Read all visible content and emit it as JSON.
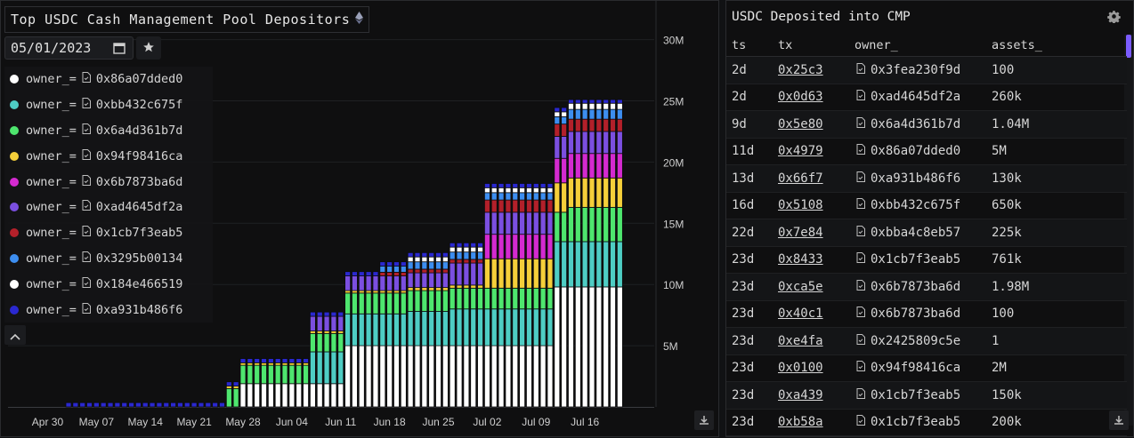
{
  "left": {
    "title": "Top USDC Cash Management Pool Depositors",
    "date": "05/01/2023",
    "legend_key": "owner_=",
    "legend": [
      {
        "label": "0x86a07dded0",
        "color": "#ffffff"
      },
      {
        "label": "0xbb432c675f",
        "color": "#4ecdc4"
      },
      {
        "label": "0x6a4d361b7d",
        "color": "#4ee66e"
      },
      {
        "label": "0x94f98416ca",
        "color": "#f5cf3a"
      },
      {
        "label": "0x6b7873ba6d",
        "color": "#d42ad0"
      },
      {
        "label": "0xad4645df2a",
        "color": "#7b4fe0"
      },
      {
        "label": "0x1cb7f3eab5",
        "color": "#b3202a"
      },
      {
        "label": "0x3295b00134",
        "color": "#3d8ef0"
      },
      {
        "label": "0x184e466519",
        "color": "#ffffff"
      },
      {
        "label": "0xa931b486f6",
        "color": "#2a28d0"
      }
    ]
  },
  "chart_data": {
    "type": "bar",
    "stacked": true,
    "title": "Top USDC Cash Management Pool Depositors",
    "x_tick_labels": [
      "Apr 30",
      "May 07",
      "May 14",
      "May 21",
      "May 28",
      "Jun 04",
      "Jun 11",
      "Jun 18",
      "Jun 25",
      "Jul 02",
      "Jul 09",
      "Jul 16"
    ],
    "y_tick_labels": [
      "5M",
      "10M",
      "15M",
      "20M",
      "25M",
      "30M"
    ],
    "ylim": [
      0,
      32
    ],
    "y_unit": "M",
    "first_date": "May 03",
    "bar_count": 80,
    "series_order": [
      "0x86a07dded0",
      "0xbb432c675f",
      "0x6a4d361b7d",
      "0x94f98416ca",
      "0x6b7873ba6d",
      "0xad4645df2a",
      "0x1cb7f3eab5",
      "0x3295b00134",
      "0x184e466519",
      "0xa931b486f6"
    ],
    "phases": [
      {
        "from": 0,
        "to": 22,
        "values": [
          0,
          0,
          0,
          0,
          0,
          0,
          0,
          0,
          0,
          0.35
        ]
      },
      {
        "from": 23,
        "to": 24,
        "values": [
          0,
          0,
          1.5,
          0.2,
          0,
          0,
          0,
          0,
          0,
          0.35
        ]
      },
      {
        "from": 25,
        "to": 34,
        "values": [
          1.9,
          0,
          1.5,
          0.2,
          0,
          0,
          0,
          0,
          0,
          0.35
        ]
      },
      {
        "from": 35,
        "to": 39,
        "values": [
          1.9,
          2.6,
          1.5,
          0.2,
          0,
          1.2,
          0,
          0,
          0,
          0.35
        ]
      },
      {
        "from": 40,
        "to": 44,
        "values": [
          5.0,
          2.6,
          1.7,
          0.2,
          0,
          1.2,
          0,
          0,
          0,
          0.35
        ]
      },
      {
        "from": 45,
        "to": 48,
        "values": [
          5.0,
          2.6,
          1.7,
          0.2,
          0,
          1.2,
          0.3,
          0.5,
          0,
          0.35
        ]
      },
      {
        "from": 49,
        "to": 51,
        "values": [
          5.0,
          2.8,
          1.7,
          0.25,
          0.0,
          1.2,
          0.3,
          0.6,
          0.4,
          0.35
        ]
      },
      {
        "from": 52,
        "to": 54,
        "values": [
          5.0,
          2.8,
          1.7,
          0.25,
          0.0,
          1.2,
          0.3,
          0.6,
          0.4,
          0.35
        ]
      },
      {
        "from": 55,
        "to": 59,
        "values": [
          5.0,
          3.0,
          1.7,
          0.25,
          0.0,
          1.8,
          0.3,
          0.6,
          0.4,
          0.35
        ]
      },
      {
        "from": 60,
        "to": 64,
        "values": [
          5.0,
          3.0,
          1.7,
          2.4,
          2.0,
          1.8,
          1.0,
          0.6,
          0.4,
          0.35
        ]
      },
      {
        "from": 65,
        "to": 69,
        "values": [
          5.0,
          3.0,
          1.7,
          2.4,
          2.0,
          1.8,
          1.0,
          0.6,
          0.4,
          0.35
        ]
      },
      {
        "from": 70,
        "to": 71,
        "values": [
          9.8,
          3.7,
          2.4,
          2.4,
          2.0,
          1.8,
          1.0,
          0.6,
          0.4,
          0.35
        ]
      },
      {
        "from": 72,
        "to": 79,
        "values": [
          9.8,
          3.7,
          2.8,
          2.4,
          2.0,
          1.8,
          1.0,
          0.8,
          0.5,
          0.3
        ]
      }
    ]
  },
  "right": {
    "title": "USDC Deposited into CMP",
    "columns": [
      "ts",
      "tx",
      "owner_",
      "assets_"
    ],
    "rows": [
      {
        "ts": "2d",
        "tx": "0x25c3",
        "owner": "0x3fea230f9d",
        "assets": "100"
      },
      {
        "ts": "2d",
        "tx": "0x0d63",
        "owner": "0xad4645df2a",
        "assets": "260k"
      },
      {
        "ts": "9d",
        "tx": "0x5e80",
        "owner": "0x6a4d361b7d",
        "assets": "1.04M"
      },
      {
        "ts": "11d",
        "tx": "0x4979",
        "owner": "0x86a07dded0",
        "assets": "5M"
      },
      {
        "ts": "13d",
        "tx": "0x66f7",
        "owner": "0xa931b486f6",
        "assets": "130k"
      },
      {
        "ts": "16d",
        "tx": "0x5108",
        "owner": "0xbb432c675f",
        "assets": "650k"
      },
      {
        "ts": "22d",
        "tx": "0x7e84",
        "owner": "0xbba4c8eb57",
        "assets": "225k"
      },
      {
        "ts": "23d",
        "tx": "0x8433",
        "owner": "0x1cb7f3eab5",
        "assets": "761k"
      },
      {
        "ts": "23d",
        "tx": "0xca5e",
        "owner": "0x6b7873ba6d",
        "assets": "1.98M"
      },
      {
        "ts": "23d",
        "tx": "0x40c1",
        "owner": "0x6b7873ba6d",
        "assets": "100"
      },
      {
        "ts": "23d",
        "tx": "0xe4fa",
        "owner": "0x2425809c5e",
        "assets": "1"
      },
      {
        "ts": "23d",
        "tx": "0x0100",
        "owner": "0x94f98416ca",
        "assets": "2M"
      },
      {
        "ts": "23d",
        "tx": "0xa439",
        "owner": "0x1cb7f3eab5",
        "assets": "150k"
      },
      {
        "ts": "23d",
        "tx": "0xb58a",
        "owner": "0x1cb7f3eab5",
        "assets": "200k"
      }
    ]
  }
}
